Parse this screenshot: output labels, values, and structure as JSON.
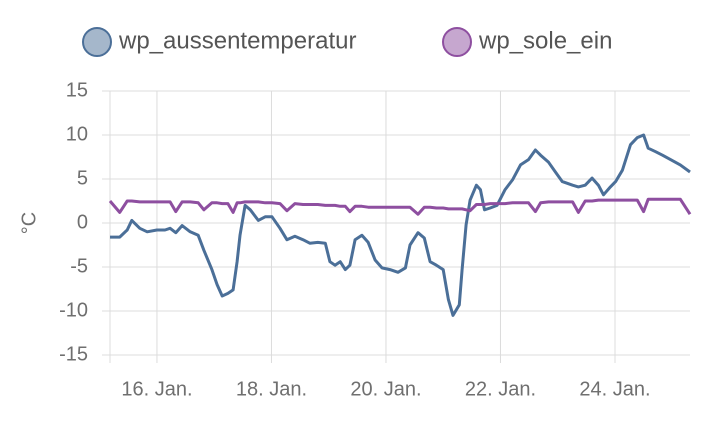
{
  "chart_data": {
    "type": "line",
    "y_label": "°C",
    "x": [
      15.18,
      15.35,
      15.48,
      15.56,
      15.7,
      15.83,
      16.0,
      16.14,
      16.23,
      16.33,
      16.44,
      16.58,
      16.72,
      16.82,
      16.96,
      17.05,
      17.14,
      17.24,
      17.33,
      17.4,
      17.45,
      17.54,
      17.63,
      17.77,
      17.89,
      18.01,
      18.15,
      18.27,
      18.41,
      18.55,
      18.67,
      18.81,
      18.94,
      19.02,
      19.11,
      19.2,
      19.29,
      19.37,
      19.46,
      19.58,
      19.69,
      19.81,
      19.93,
      20.07,
      20.21,
      20.34,
      20.42,
      20.56,
      20.67,
      20.77,
      20.88,
      21.0,
      21.09,
      21.17,
      21.28,
      21.33,
      21.4,
      21.47,
      21.58,
      21.65,
      21.72,
      21.82,
      21.94,
      22.08,
      22.21,
      22.35,
      22.49,
      22.61,
      22.7,
      22.84,
      22.96,
      23.08,
      23.26,
      23.36,
      23.48,
      23.6,
      23.71,
      23.8,
      23.92,
      24.01,
      24.13,
      24.27,
      24.39,
      24.5,
      24.58,
      24.71,
      24.83,
      24.97,
      25.14,
      25.31
    ],
    "series": [
      {
        "name": "wp_aussentemperatur",
        "color": "#4b6f98",
        "values": [
          -1.6,
          -1.6,
          -0.8,
          0.3,
          -0.6,
          -1,
          -0.8,
          -0.8,
          -0.6,
          -1.1,
          -0.3,
          -1,
          -1.4,
          -3.1,
          -5.3,
          -7,
          -8.3,
          -8,
          -7.6,
          -4.4,
          -1.4,
          2,
          1.5,
          0.3,
          0.7,
          0.7,
          -0.6,
          -1.9,
          -1.5,
          -1.9,
          -2.3,
          -2.2,
          -2.3,
          -4.4,
          -4.8,
          -4.4,
          -5.3,
          -4.8,
          -1.9,
          -1.4,
          -2.2,
          -4.2,
          -5.1,
          -5.3,
          -5.6,
          -5.1,
          -2.5,
          -1.1,
          -1.7,
          -4.4,
          -4.8,
          -5.3,
          -8.7,
          -10.5,
          -9.3,
          -5.3,
          -0.2,
          2.6,
          4.3,
          3.8,
          1.5,
          1.7,
          2,
          3.8,
          4.9,
          6.6,
          7.2,
          8.3,
          7.7,
          6.9,
          5.8,
          4.7,
          4.3,
          4.1,
          4.3,
          5.1,
          4.3,
          3.2,
          4.1,
          4.7,
          6,
          8.9,
          9.7,
          10,
          8.5,
          8.1,
          7.7,
          7.2,
          6.6,
          5.8
        ]
      },
      {
        "name": "wp_sole_ein",
        "color": "#8e4fa0",
        "values": [
          2.5,
          1.2,
          2.5,
          2.5,
          2.4,
          2.4,
          2.4,
          2.4,
          2.4,
          1.3,
          2.4,
          2.4,
          2.3,
          1.5,
          2.3,
          2.3,
          2.2,
          2.2,
          1.2,
          2.3,
          2.3,
          2.4,
          2.4,
          2.4,
          2.3,
          2.3,
          2.2,
          1.4,
          2.2,
          2.1,
          2.1,
          2.1,
          2.0,
          2.0,
          2.0,
          1.9,
          1.9,
          1.3,
          1.9,
          1.9,
          1.8,
          1.8,
          1.8,
          1.8,
          1.8,
          1.8,
          1.8,
          1.0,
          1.8,
          1.8,
          1.7,
          1.7,
          1.6,
          1.6,
          1.6,
          1.6,
          1.5,
          1.4,
          2.1,
          2.1,
          2.1,
          2.2,
          2.2,
          2.2,
          2.3,
          2.3,
          2.3,
          1.3,
          2.3,
          2.4,
          2.4,
          2.4,
          2.4,
          1.2,
          2.5,
          2.5,
          2.6,
          2.6,
          2.6,
          2.6,
          2.6,
          2.6,
          2.6,
          1.3,
          2.7,
          2.7,
          2.7,
          2.7,
          2.7,
          1.0
        ]
      }
    ],
    "xlim": [
      15.18,
      25.31
    ],
    "xticks": [
      {
        "value": 16,
        "label": "16. Jan."
      },
      {
        "value": 18,
        "label": "18. Jan."
      },
      {
        "value": 20,
        "label": "20. Jan."
      },
      {
        "value": 22,
        "label": "22. Jan."
      },
      {
        "value": 24,
        "label": "24. Jan."
      }
    ],
    "ylim": [
      -15,
      15
    ],
    "yticks": [
      -15,
      -10,
      -5,
      0,
      5,
      10,
      15
    ],
    "grid": true
  }
}
